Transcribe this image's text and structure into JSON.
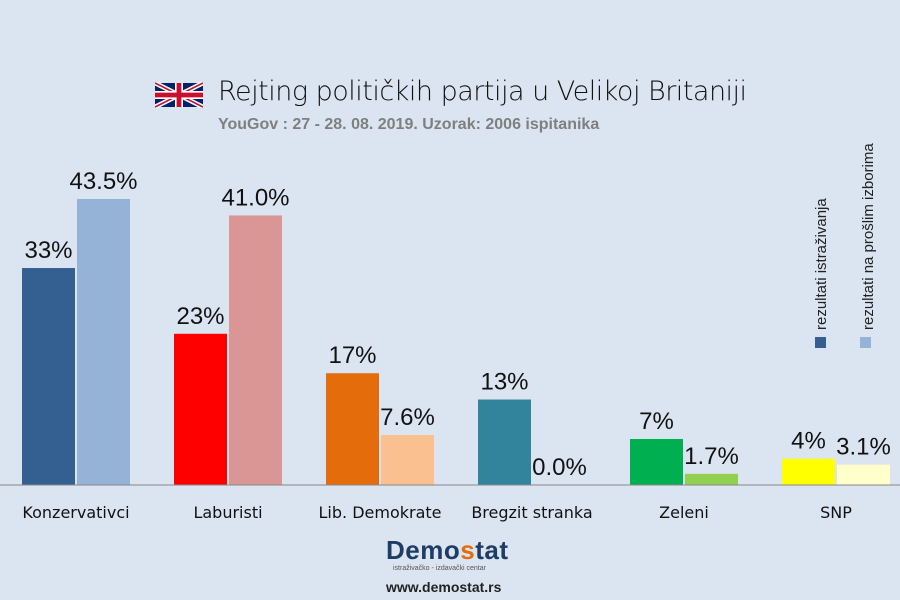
{
  "chart_data": {
    "type": "bar",
    "title": "Rejting političkih partija u Velikoj Britaniji",
    "subtitle": "YouGov : 27 - 28. 08. 2019.  Uzorak: 2006 ispitanika",
    "categories": [
      "Konzervativci",
      "Laburisti",
      "Lib. Demokrate",
      "Bregzit stranka",
      "Zeleni",
      "SNP"
    ],
    "series": [
      {
        "name": "rezultati istraživanja",
        "values": [
          33,
          23,
          17,
          13,
          7,
          4
        ],
        "labels": [
          "33%",
          "23%",
          "17%",
          "13%",
          "7%",
          "4%"
        ],
        "colors": [
          "#345f91",
          "#ff0000",
          "#e46c0a",
          "#31849b",
          "#00b050",
          "#ffff00"
        ]
      },
      {
        "name": "rezultati na prošlim izborima",
        "values": [
          43.5,
          41.0,
          7.6,
          0.0,
          1.7,
          3.1
        ],
        "labels": [
          "43.5%",
          "41.0%",
          "7.6%",
          "0.0%",
          "1.7%",
          "3.1%"
        ],
        "colors": [
          "#95b3d7",
          "#d99694",
          "#fac090",
          "#fac090",
          "#92d050",
          "#ffffcc"
        ]
      }
    ],
    "legend_colors": [
      "#345f91",
      "#95b3d7"
    ],
    "legend_placement": "top-right",
    "grid": false,
    "ylim": [
      0,
      45
    ]
  },
  "logo": {
    "name_a": "Demo",
    "name_s": "s",
    "name_b": "tat",
    "tagline": "istraživačko - izdavački centar",
    "url": "www.demostat.rs"
  }
}
